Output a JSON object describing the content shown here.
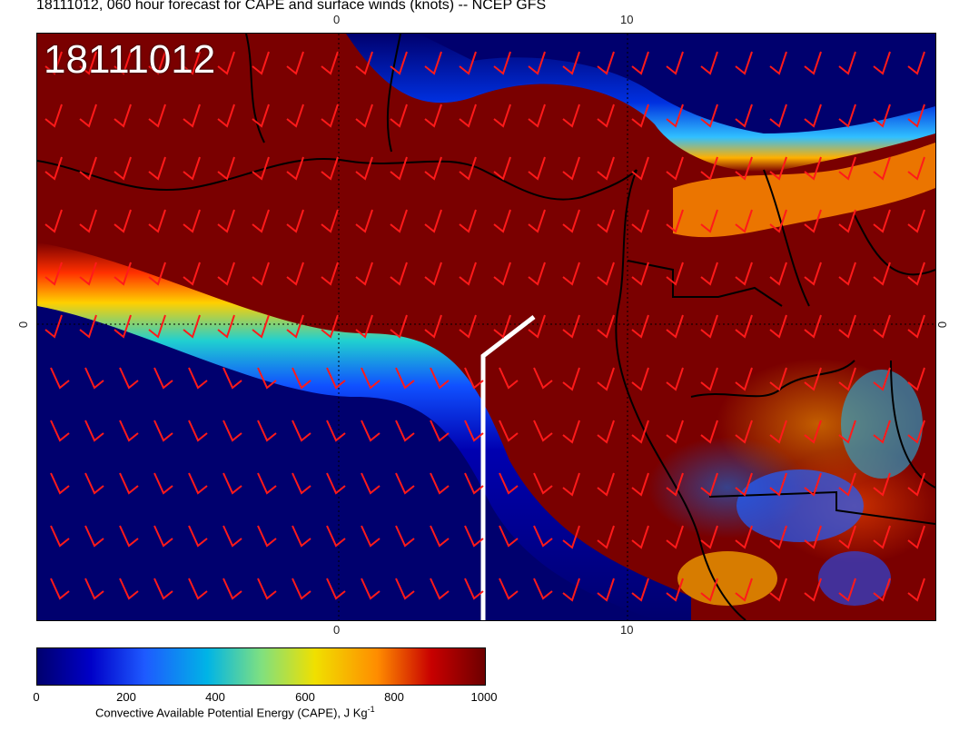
{
  "title": "18111012, 060 hour forecast for CAPE and surface winds (knots) -- NCEP GFS",
  "stamp": "18111012",
  "axis_labels": {
    "top": [
      "0",
      "10"
    ],
    "bottom": [
      "0",
      "10"
    ],
    "left": "0",
    "right": "0"
  },
  "colorbar": {
    "ticks": [
      "0",
      "200",
      "400",
      "600",
      "800",
      "1000"
    ],
    "label": "Convective Available Potential Energy (CAPE), J Kg",
    "label_superscript": "-1"
  },
  "colors": {
    "high_cape": "#7a0000",
    "low_cape": "#00006e",
    "wind_barb": "#ff1a1a",
    "boundary": "#000000",
    "section_line": "#ffffff"
  }
}
